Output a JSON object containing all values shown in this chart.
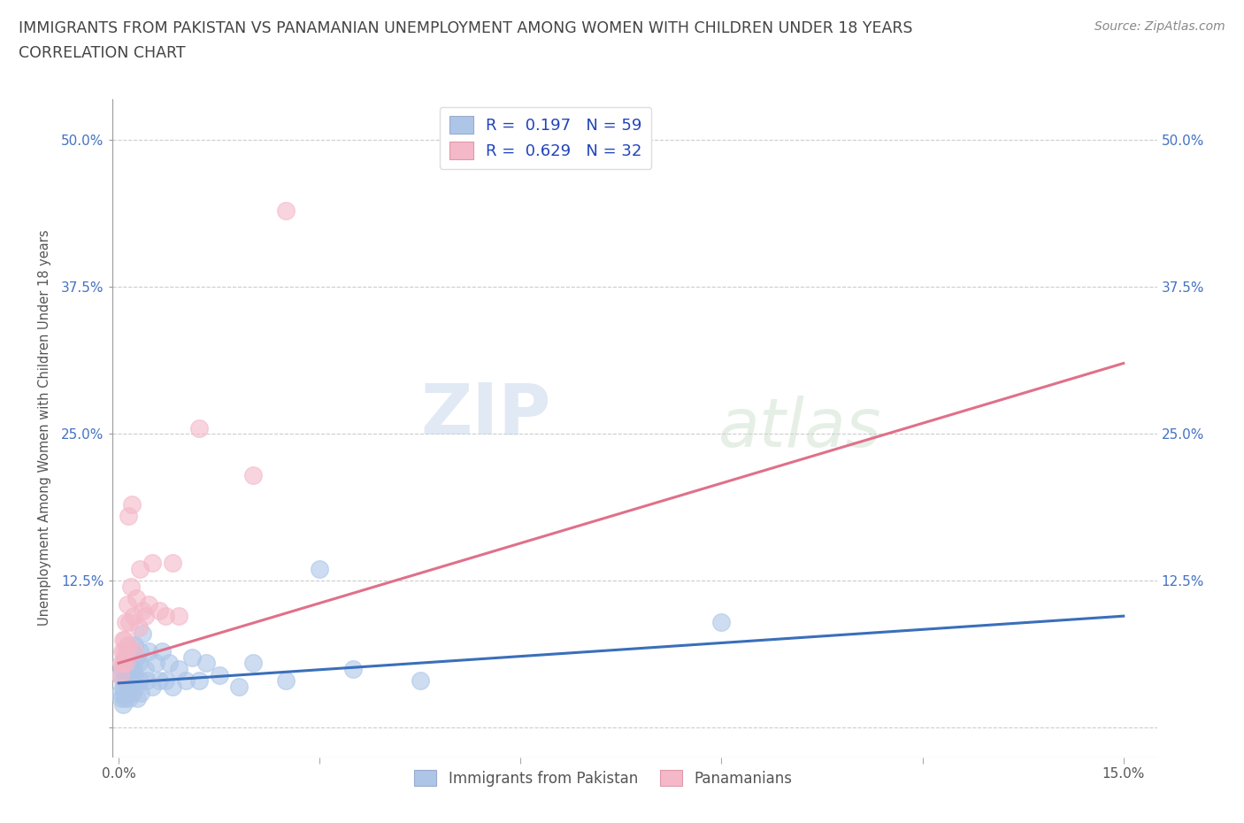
{
  "title_line1": "IMMIGRANTS FROM PAKISTAN VS PANAMANIAN UNEMPLOYMENT AMONG WOMEN WITH CHILDREN UNDER 18 YEARS",
  "title_line2": "CORRELATION CHART",
  "source_text": "Source: ZipAtlas.com",
  "ylabel": "Unemployment Among Women with Children Under 18 years",
  "xlim": [
    -0.001,
    0.155
  ],
  "ylim": [
    -0.025,
    0.535
  ],
  "xtick_positions": [
    0.0,
    0.03,
    0.06,
    0.09,
    0.12,
    0.15
  ],
  "xtick_labels_show": [
    "0.0%",
    "",
    "",
    "",
    "",
    "15.0%"
  ],
  "yticks": [
    0.0,
    0.125,
    0.25,
    0.375,
    0.5
  ],
  "ytick_labels": [
    "",
    "12.5%",
    "25.0%",
    "37.5%",
    "50.0%"
  ],
  "grid_color": "#cccccc",
  "background_color": "#ffffff",
  "blue_scatter_color": "#adc6e8",
  "pink_scatter_color": "#f4b8c8",
  "blue_line_color": "#3a6fba",
  "pink_line_color": "#e0708a",
  "R_blue": 0.197,
  "N_blue": 59,
  "R_pink": 0.629,
  "N_pink": 32,
  "legend_label_blue": "Immigrants from Pakistan",
  "legend_label_pink": "Panamanians",
  "watermark_zip": "ZIP",
  "watermark_atlas": "atlas",
  "blue_scatter_x": [
    0.0002,
    0.0003,
    0.0004,
    0.0005,
    0.0006,
    0.0006,
    0.0007,
    0.0008,
    0.0008,
    0.0009,
    0.001,
    0.001,
    0.0012,
    0.0013,
    0.0013,
    0.0014,
    0.0015,
    0.0015,
    0.0016,
    0.0017,
    0.0018,
    0.0019,
    0.002,
    0.002,
    0.0021,
    0.0022,
    0.0023,
    0.0024,
    0.0025,
    0.0026,
    0.0027,
    0.003,
    0.0031,
    0.0032,
    0.0033,
    0.0035,
    0.004,
    0.0042,
    0.0045,
    0.005,
    0.0055,
    0.006,
    0.0065,
    0.007,
    0.0075,
    0.008,
    0.009,
    0.01,
    0.011,
    0.012,
    0.013,
    0.015,
    0.018,
    0.02,
    0.025,
    0.03,
    0.035,
    0.045,
    0.09
  ],
  "blue_scatter_y": [
    0.03,
    0.045,
    0.025,
    0.05,
    0.02,
    0.04,
    0.035,
    0.03,
    0.055,
    0.025,
    0.04,
    0.06,
    0.03,
    0.05,
    0.07,
    0.04,
    0.03,
    0.06,
    0.025,
    0.045,
    0.035,
    0.055,
    0.04,
    0.065,
    0.03,
    0.05,
    0.07,
    0.045,
    0.035,
    0.06,
    0.025,
    0.055,
    0.04,
    0.065,
    0.03,
    0.08,
    0.05,
    0.04,
    0.065,
    0.035,
    0.055,
    0.04,
    0.065,
    0.04,
    0.055,
    0.035,
    0.05,
    0.04,
    0.06,
    0.04,
    0.055,
    0.045,
    0.035,
    0.055,
    0.04,
    0.135,
    0.05,
    0.04,
    0.09
  ],
  "pink_scatter_x": [
    0.0002,
    0.0004,
    0.0005,
    0.0006,
    0.0007,
    0.0008,
    0.0009,
    0.001,
    0.0011,
    0.0012,
    0.0013,
    0.0014,
    0.0015,
    0.0016,
    0.0018,
    0.002,
    0.0022,
    0.0024,
    0.0026,
    0.003,
    0.0032,
    0.0035,
    0.004,
    0.0045,
    0.005,
    0.006,
    0.007,
    0.008,
    0.009,
    0.012,
    0.02,
    0.025
  ],
  "pink_scatter_y": [
    0.045,
    0.055,
    0.065,
    0.075,
    0.055,
    0.065,
    0.075,
    0.055,
    0.09,
    0.065,
    0.105,
    0.18,
    0.07,
    0.09,
    0.12,
    0.19,
    0.095,
    0.065,
    0.11,
    0.085,
    0.135,
    0.1,
    0.095,
    0.105,
    0.14,
    0.1,
    0.095,
    0.14,
    0.095,
    0.255,
    0.215,
    0.44
  ],
  "blue_trend_x": [
    0.0,
    0.15
  ],
  "blue_trend_y": [
    0.038,
    0.095
  ],
  "pink_trend_x": [
    0.0,
    0.15
  ],
  "pink_trend_y": [
    0.055,
    0.31
  ]
}
